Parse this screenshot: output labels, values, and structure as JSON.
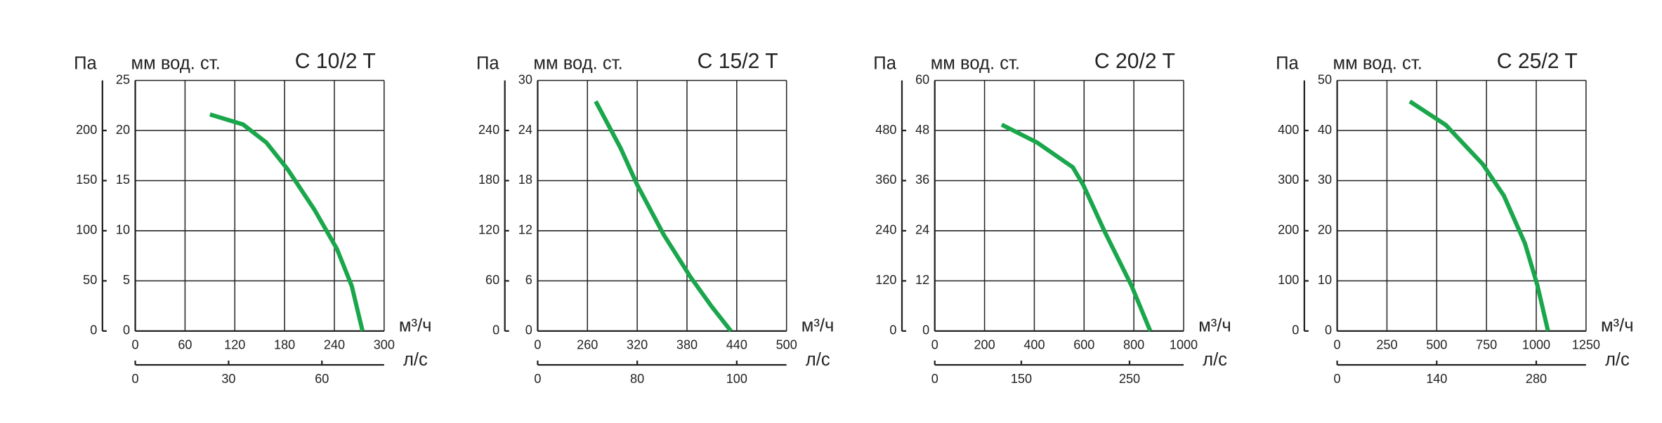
{
  "chart_data": [
    {
      "type": "line",
      "title": "C 10/2 T",
      "y_label": "мм  вод. ст.",
      "y2_label": "Па",
      "x_label": "м³/ч",
      "x2_label": "л/с",
      "color": "#1aa64b",
      "x": [
        90,
        130,
        158,
        184,
        216,
        243,
        261,
        274
      ],
      "values": [
        21.6,
        20.6,
        18.8,
        16.1,
        12.1,
        8.2,
        4.5,
        0
      ],
      "xlim": [
        0,
        300
      ],
      "xticks": [
        0,
        60,
        120,
        180,
        240,
        300
      ],
      "ylim": [
        0,
        25
      ],
      "yticks": [
        0,
        5,
        10,
        15,
        20,
        25
      ],
      "y2lim": [
        0,
        250
      ],
      "y2ticks": [
        0,
        50,
        100,
        150,
        200
      ],
      "x2lim": [
        0,
        80
      ],
      "x2ticks": [
        0,
        30,
        60
      ],
      "grid": true
    },
    {
      "type": "line",
      "title": "C 15/2 T",
      "y_label": "мм  вод. ст.",
      "y2_label": "Па",
      "x_label": "м³/ч",
      "x2_label": "л/с",
      "color": "#1aa64b",
      "x": [
        270,
        300,
        320,
        352,
        384,
        410,
        433
      ],
      "values": [
        27.5,
        21.9,
        17.5,
        11.5,
        6.5,
        2.9,
        0
      ],
      "xlim": [
        200,
        500
      ],
      "xticks": [
        {
          "value": 200,
          "label": "0"
        },
        260,
        320,
        380,
        440,
        500
      ],
      "ylim": [
        0,
        30
      ],
      "yticks": [
        0,
        6,
        12,
        18,
        24,
        30
      ],
      "y2lim": [
        0,
        300
      ],
      "y2ticks": [
        0,
        60,
        120,
        180,
        240
      ],
      "x2lim": [
        60,
        110
      ],
      "x2ticks": [
        {
          "value": 60,
          "label": "0"
        },
        80,
        100
      ],
      "grid": true
    },
    {
      "type": "line",
      "title": "C 20/2 T",
      "y_label": "мм  вод. ст.",
      "y2_label": "Па",
      "x_label": "м³/ч",
      "x2_label": "л/с",
      "color": "#1aa64b",
      "x": [
        269,
        412,
        555,
        597,
        685,
        790,
        866
      ],
      "values": [
        49.4,
        45.1,
        39.2,
        34.9,
        23.5,
        10.9,
        0
      ],
      "xlim": [
        0,
        1000
      ],
      "xticks": [
        0,
        200,
        400,
        600,
        800,
        1000
      ],
      "ylim": [
        0,
        60
      ],
      "yticks": [
        0,
        12,
        24,
        36,
        48,
        60
      ],
      "y2lim": [
        0,
        600
      ],
      "y2ticks": [
        0,
        120,
        240,
        360,
        480
      ],
      "x2lim": [
        70,
        300
      ],
      "x2ticks": [
        {
          "value": 70,
          "label": "0"
        },
        150,
        250
      ],
      "grid": true
    },
    {
      "type": "line",
      "title": "C 25/2 T",
      "y_label": "мм  вод. ст.",
      "y2_label": "Па",
      "x_label": "м³/ч",
      "x2_label": "л/с",
      "color": "#1aa64b",
      "x": [
        365,
        546,
        731,
        837,
        943,
        1006,
        1059
      ],
      "values": [
        45.8,
        41.1,
        33.3,
        27.0,
        17.5,
        9.1,
        0
      ],
      "xlim": [
        0,
        1250
      ],
      "xticks": [
        0,
        250,
        500,
        750,
        1000,
        1250
      ],
      "ylim": [
        0,
        50
      ],
      "yticks": [
        0,
        10,
        20,
        30,
        40,
        50
      ],
      "y2lim": [
        0,
        500
      ],
      "y2ticks": [
        0,
        100,
        200,
        300,
        400
      ],
      "x2lim": [
        0,
        350
      ],
      "x2ticks": [
        0,
        140,
        280
      ],
      "grid": true
    }
  ]
}
